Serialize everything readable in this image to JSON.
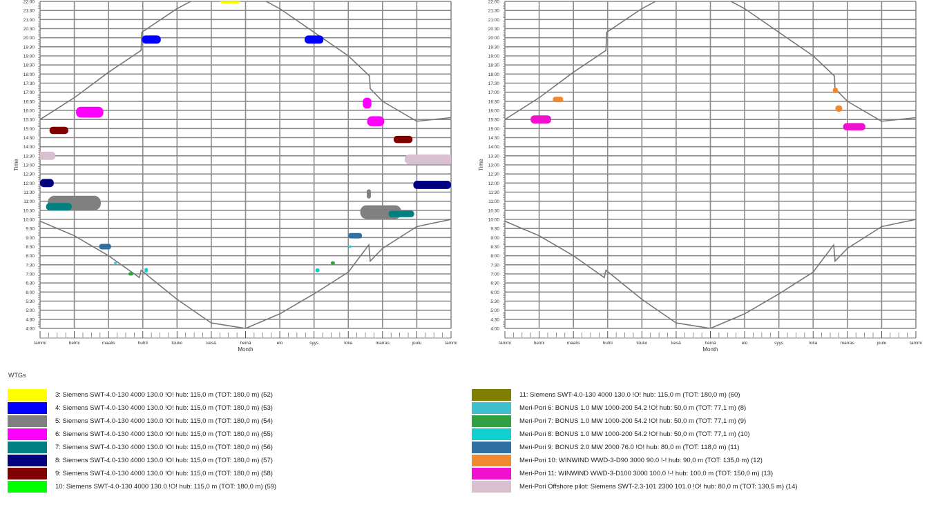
{
  "legend_title": "WTGs",
  "legend_left": [
    {
      "label": "3: Siemens SWT-4.0-130 4000 130.0 !O! hub: 115,0 m (TOT: 180,0 m) (52)",
      "color": "#ffff00"
    },
    {
      "label": "4: Siemens SWT-4.0-130 4000 130.0 !O! hub: 115,0 m (TOT: 180,0 m) (53)",
      "color": "#0000ff"
    },
    {
      "label": "5: Siemens SWT-4.0-130 4000 130.0 !O! hub: 115,0 m (TOT: 180,0 m) (54)",
      "color": "#808080"
    },
    {
      "label": "6: Siemens SWT-4.0-130 4000 130.0 !O! hub: 115,0 m (TOT: 180,0 m) (55)",
      "color": "#ff00ff"
    },
    {
      "label": "7: Siemens SWT-4.0-130 4000 130.0 !O! hub: 115,0 m (TOT: 180,0 m) (56)",
      "color": "#008080"
    },
    {
      "label": "8: Siemens SWT-4.0-130 4000 130.0 !O! hub: 115,0 m (TOT: 180,0 m) (57)",
      "color": "#000080"
    },
    {
      "label": "9: Siemens SWT-4.0-130 4000 130.0 !O! hub: 115,0 m (TOT: 180,0 m) (58)",
      "color": "#800000"
    },
    {
      "label": "10: Siemens SWT-4.0-130 4000 130.0 !O! hub: 115,0 m (TOT: 180,0 m) (59)",
      "color": "#00ff00"
    }
  ],
  "legend_right": [
    {
      "label": "11: Siemens SWT-4.0-130 4000 130.0 !O! hub: 115,0 m (TOT: 180,0 m) (60)",
      "color": "#808000"
    },
    {
      "label": "Meri-Pori 6: BONUS 1.0 MW 1000-200 54.2 !O! hub: 50,0 m (TOT: 77,1 m) (8)",
      "color": "#40bfcf"
    },
    {
      "label": "Meri-Pori 7: BONUS 1.0 MW 1000-200 54.2 !O! hub: 50,0 m (TOT: 77,1 m) (9)",
      "color": "#30a040"
    },
    {
      "label": "Meri-Pori 8: BONUS 1.0 MW 1000-200 54.2 !O! hub: 50,0 m (TOT: 77,1 m) (10)",
      "color": "#10cfcf"
    },
    {
      "label": "Meri-Pori 9: BONUS 2.0 MW 2000 76.0 !O! hub: 80,0 m (TOT: 118,0 m) (11)",
      "color": "#3070a0"
    },
    {
      "label": "Meri-Pori 10: WINWIND WWD-3-D90 3000 90.0 !-! hub: 90,0 m (TOT: 135,0 m) (12)",
      "color": "#f08830"
    },
    {
      "label": "Meri-Pori 11: WINWIND WWD-3-D100 3000 100.0 !-! hub: 100,0 m (TOT: 150,0 m) (13)",
      "color": "#f010d0"
    },
    {
      "label": "Meri-Pori Offshore pilot: Siemens SWT-2.3-101 2300 101.0 !O! hub: 80,0 m (TOT: 130,5 m) (14)",
      "color": "#d8c0d0"
    }
  ],
  "chart_data": [
    {
      "type": "scatter",
      "title": "",
      "xlabel": "Month",
      "ylabel": "Time",
      "x_ticklabels": [
        "tammi",
        "helmi",
        "maalis",
        "huhti",
        "touko",
        "kesä",
        "heinä",
        "elo",
        "syys",
        "loka",
        "marras",
        "joulu",
        "tammi"
      ],
      "y_ticklabels": [
        "4:00",
        "4:30",
        "5:00",
        "5:30",
        "6:00",
        "6:30",
        "7:00",
        "7:30",
        "8:00",
        "8:30",
        "9:00",
        "9:30",
        "10:00",
        "10:30",
        "11:00",
        "11:30",
        "12:00",
        "12:30",
        "13:00",
        "13:30",
        "14:00",
        "14:30",
        "15:00",
        "15:30",
        "16:00",
        "16:30",
        "17:00",
        "17:30",
        "18:00",
        "18:30",
        "19:00",
        "19:30",
        "20:00",
        "20:30",
        "21:00",
        "21:30",
        "22:00"
      ],
      "xlim": [
        0,
        12
      ],
      "ylim": [
        4.0,
        22.0
      ],
      "grid": true,
      "sunset": [
        [
          0,
          15.5
        ],
        [
          1,
          16.7
        ],
        [
          2,
          18.1
        ],
        [
          2.95,
          19.3
        ],
        [
          2.97,
          20.3
        ],
        [
          4,
          21.6
        ],
        [
          5,
          22.6
        ],
        [
          6,
          22.6
        ],
        [
          7,
          21.6
        ],
        [
          8,
          20.3
        ],
        [
          9,
          19.0
        ],
        [
          9.62,
          17.9
        ],
        [
          9.64,
          17.2
        ],
        [
          10,
          16.5
        ],
        [
          11,
          15.4
        ],
        [
          12,
          15.6
        ]
      ],
      "sunrise": [
        [
          0,
          9.9
        ],
        [
          1,
          9.1
        ],
        [
          2,
          8.0
        ],
        [
          2.9,
          6.8
        ],
        [
          2.95,
          7.2
        ],
        [
          4,
          5.6
        ],
        [
          5,
          4.3
        ],
        [
          6,
          4.0
        ],
        [
          7,
          4.8
        ],
        [
          8,
          5.9
        ],
        [
          9,
          7.1
        ],
        [
          9.6,
          8.6
        ],
        [
          9.64,
          7.7
        ],
        [
          10,
          8.4
        ],
        [
          11,
          9.6
        ],
        [
          12,
          10.0
        ]
      ],
      "series": [
        {
          "color": "#ffff00",
          "blobs": [
            {
              "x": 5.55,
              "y": 22.1,
              "w": 0.6,
              "h": 0.45
            }
          ]
        },
        {
          "color": "#0000ff",
          "blobs": [
            {
              "x": 3.25,
              "y": 19.9,
              "w": 0.55,
              "h": 0.45
            },
            {
              "x": 8.0,
              "y": 19.9,
              "w": 0.55,
              "h": 0.45
            }
          ]
        },
        {
          "color": "#808080",
          "blobs": [
            {
              "x": 1.0,
              "y": 10.9,
              "w": 1.55,
              "h": 0.8
            },
            {
              "x": 9.95,
              "y": 10.4,
              "w": 1.2,
              "h": 0.75
            },
            {
              "x": 9.6,
              "y": 11.4,
              "w": 0.12,
              "h": 0.5
            }
          ]
        },
        {
          "color": "#ff00ff",
          "blobs": [
            {
              "x": 1.45,
              "y": 15.9,
              "w": 0.8,
              "h": 0.6
            },
            {
              "x": 9.55,
              "y": 16.4,
              "w": 0.25,
              "h": 0.6
            },
            {
              "x": 9.8,
              "y": 15.4,
              "w": 0.5,
              "h": 0.55
            }
          ]
        },
        {
          "color": "#008080",
          "blobs": [
            {
              "x": 0.55,
              "y": 10.7,
              "w": 0.75,
              "h": 0.4
            },
            {
              "x": 10.55,
              "y": 10.3,
              "w": 0.75,
              "h": 0.35
            }
          ]
        },
        {
          "color": "#000080",
          "blobs": [
            {
              "x": 0.2,
              "y": 12.0,
              "w": 0.4,
              "h": 0.45
            },
            {
              "x": 11.45,
              "y": 11.9,
              "w": 1.1,
              "h": 0.45
            }
          ]
        },
        {
          "color": "#800000",
          "blobs": [
            {
              "x": 0.55,
              "y": 14.9,
              "w": 0.55,
              "h": 0.4
            },
            {
              "x": 10.6,
              "y": 14.4,
              "w": 0.55,
              "h": 0.4
            }
          ]
        },
        {
          "color": "#40bfcf",
          "blobs": [
            {
              "x": 2.2,
              "y": 7.6,
              "w": 0.08,
              "h": 0.12
            },
            {
              "x": 9.05,
              "y": 8.5,
              "w": 0.1,
              "h": 0.12
            }
          ]
        },
        {
          "color": "#30a040",
          "blobs": [
            {
              "x": 2.65,
              "y": 7.0,
              "w": 0.14,
              "h": 0.18
            },
            {
              "x": 8.55,
              "y": 7.6,
              "w": 0.12,
              "h": 0.18
            }
          ]
        },
        {
          "color": "#10cfcf",
          "blobs": [
            {
              "x": 3.1,
              "y": 7.2,
              "w": 0.1,
              "h": 0.25
            },
            {
              "x": 8.1,
              "y": 7.2,
              "w": 0.12,
              "h": 0.22
            }
          ]
        },
        {
          "color": "#3070a0",
          "blobs": [
            {
              "x": 1.9,
              "y": 8.5,
              "w": 0.35,
              "h": 0.3
            },
            {
              "x": 9.2,
              "y": 9.1,
              "w": 0.4,
              "h": 0.3
            }
          ]
        },
        {
          "color": "#d8c0d0",
          "blobs": [
            {
              "x": 0.2,
              "y": 13.5,
              "w": 0.5,
              "h": 0.45
            },
            {
              "x": 11.35,
              "y": 13.3,
              "w": 1.4,
              "h": 0.55
            }
          ]
        }
      ]
    },
    {
      "type": "scatter",
      "title": "",
      "xlabel": "Month",
      "ylabel": "Time",
      "x_ticklabels": [
        "tammi",
        "helmi",
        "maalis",
        "huhti",
        "touko",
        "kesä",
        "heinä",
        "elo",
        "syys",
        "loka",
        "marras",
        "joulu",
        "tammi"
      ],
      "y_ticklabels": [
        "4:00",
        "4:30",
        "5:00",
        "5:30",
        "6:00",
        "6:30",
        "7:00",
        "7:30",
        "8:00",
        "8:30",
        "9:00",
        "9:30",
        "10:00",
        "10:30",
        "11:00",
        "11:30",
        "12:00",
        "12:30",
        "13:00",
        "13:30",
        "14:00",
        "14:30",
        "15:00",
        "15:30",
        "16:00",
        "16:30",
        "17:00",
        "17:30",
        "18:00",
        "18:30",
        "19:00",
        "19:30",
        "20:00",
        "20:30",
        "21:00",
        "21:30",
        "22:00"
      ],
      "xlim": [
        0,
        12
      ],
      "ylim": [
        4.0,
        22.0
      ],
      "grid": true,
      "sunset": [
        [
          0,
          15.5
        ],
        [
          1,
          16.7
        ],
        [
          2,
          18.1
        ],
        [
          2.95,
          19.3
        ],
        [
          2.97,
          20.3
        ],
        [
          4,
          21.6
        ],
        [
          5,
          22.6
        ],
        [
          6,
          22.6
        ],
        [
          7,
          21.6
        ],
        [
          8,
          20.3
        ],
        [
          9,
          19.0
        ],
        [
          9.62,
          17.9
        ],
        [
          9.64,
          17.2
        ],
        [
          10,
          16.5
        ],
        [
          11,
          15.4
        ],
        [
          12,
          15.6
        ]
      ],
      "sunrise": [
        [
          0,
          9.9
        ],
        [
          1,
          9.1
        ],
        [
          2,
          8.0
        ],
        [
          2.9,
          6.8
        ],
        [
          2.95,
          7.2
        ],
        [
          4,
          5.6
        ],
        [
          5,
          4.3
        ],
        [
          6,
          4.0
        ],
        [
          7,
          4.8
        ],
        [
          8,
          5.9
        ],
        [
          9,
          7.1
        ],
        [
          9.6,
          8.6
        ],
        [
          9.64,
          7.7
        ],
        [
          10,
          8.4
        ],
        [
          11,
          9.6
        ],
        [
          12,
          10.0
        ]
      ],
      "series": [
        {
          "color": "#f08830",
          "blobs": [
            {
              "x": 1.55,
              "y": 16.6,
              "w": 0.3,
              "h": 0.3
            },
            {
              "x": 9.65,
              "y": 17.1,
              "w": 0.15,
              "h": 0.3
            },
            {
              "x": 9.75,
              "y": 16.1,
              "w": 0.2,
              "h": 0.35
            }
          ]
        },
        {
          "color": "#f010d0",
          "blobs": [
            {
              "x": 1.05,
              "y": 15.5,
              "w": 0.6,
              "h": 0.45
            },
            {
              "x": 10.2,
              "y": 15.1,
              "w": 0.65,
              "h": 0.4
            }
          ]
        }
      ]
    }
  ]
}
